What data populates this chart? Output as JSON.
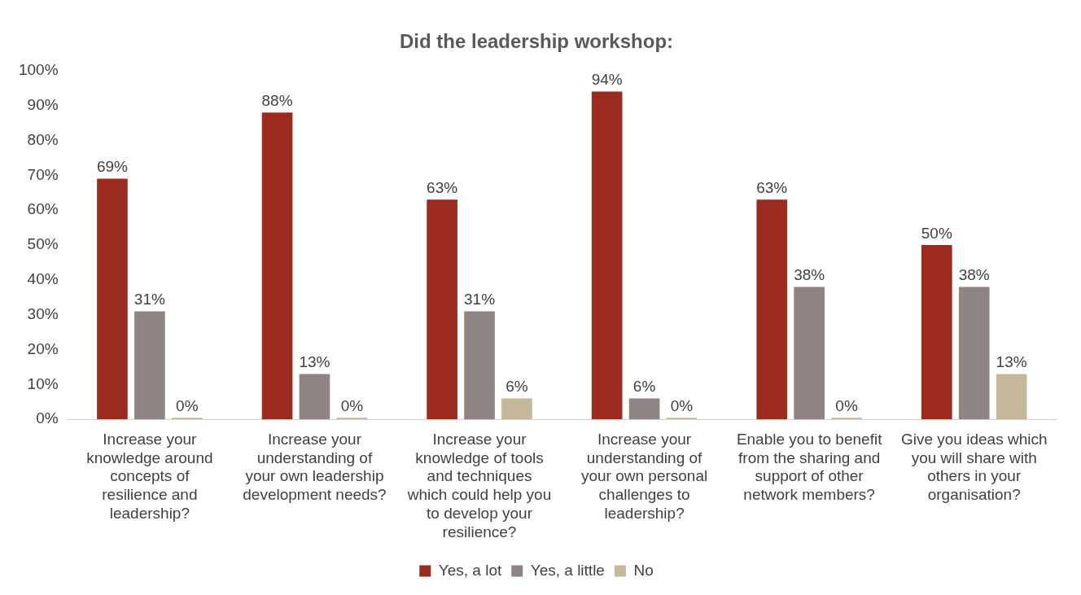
{
  "chart_data": {
    "type": "bar",
    "title": "Did the leadership workshop:",
    "categories": [
      "Increase your knowledge around concepts of resilience and leadership?",
      "Increase your understanding of your own leadership development needs?",
      "Increase your knowledge of tools and techniques which could help you to develop your resilience?",
      "Increase your understanding of your own personal challenges to leadership?",
      "Enable you to benefit from the sharing and support of other network members?",
      "Give you ideas which you will share with others in your organisation?"
    ],
    "series": [
      {
        "name": "Yes, a lot",
        "color": "#9b2a1f",
        "values": [
          69,
          88,
          63,
          94,
          63,
          50
        ],
        "value_labels": [
          "69%",
          "88%",
          "63%",
          "94%",
          "63%",
          "50%"
        ]
      },
      {
        "name": "Yes, a little",
        "color": "#8f8584",
        "values": [
          31,
          13,
          31,
          6,
          38,
          38
        ],
        "value_labels": [
          "31%",
          "13%",
          "31%",
          "6%",
          "38%",
          "38%"
        ]
      },
      {
        "name": "No",
        "color": "#c4b79a",
        "values": [
          0,
          0,
          6,
          0,
          0,
          13
        ],
        "value_labels": [
          "0%",
          "0%",
          "6%",
          "0%",
          "0%",
          "13%"
        ]
      }
    ],
    "ylim": [
      0,
      100
    ],
    "yticks": [
      {
        "value": 0,
        "label": "0%"
      },
      {
        "value": 10,
        "label": "10%"
      },
      {
        "value": 20,
        "label": "20%"
      },
      {
        "value": 30,
        "label": "30%"
      },
      {
        "value": 40,
        "label": "40%"
      },
      {
        "value": 50,
        "label": "50%"
      },
      {
        "value": 60,
        "label": "60%"
      },
      {
        "value": 70,
        "label": "70%"
      },
      {
        "value": 80,
        "label": "80%"
      },
      {
        "value": 90,
        "label": "90%"
      },
      {
        "value": 100,
        "label": "100%"
      }
    ],
    "grid": false,
    "legend": "bottom"
  }
}
